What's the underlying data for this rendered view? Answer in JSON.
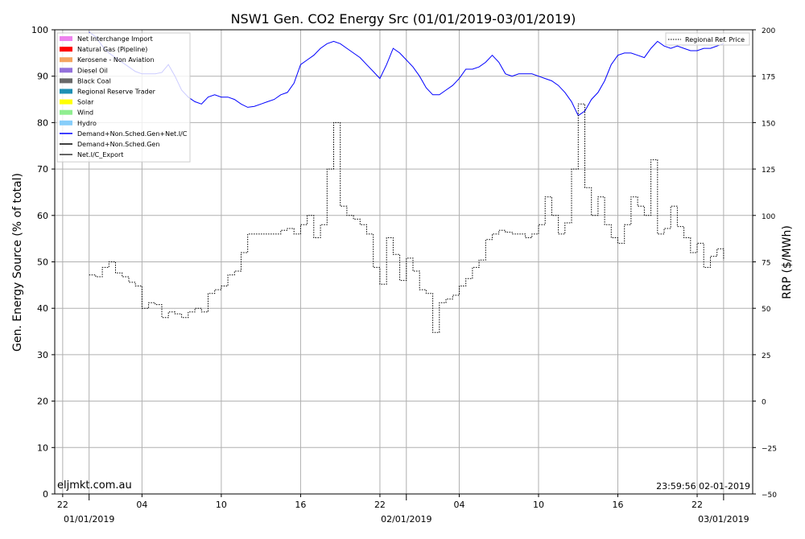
{
  "chart_data": {
    "type": "line",
    "title": "NSW1 Gen. CO2 Energy Src (01/01/2019-03/01/2019)",
    "ylabel": "Gen. Energy Source (% of total)",
    "y2label": "RRP ($/MWh)",
    "ylim": [
      0,
      100
    ],
    "y2lim": [
      -50,
      200
    ],
    "yticks": [
      "0",
      "10",
      "20",
      "30",
      "40",
      "50",
      "60",
      "70",
      "80",
      "90",
      "100"
    ],
    "y2ticks": [
      "−50",
      "−25",
      "0",
      "25",
      "50",
      "75",
      "100",
      "125",
      "150",
      "175",
      "200"
    ],
    "xlim": [
      -2.6,
      50.2
    ],
    "xticks": [
      {
        "x": -2,
        "label": "22"
      },
      {
        "x": 4,
        "label": "04"
      },
      {
        "x": 10,
        "label": "10"
      },
      {
        "x": 16,
        "label": "16"
      },
      {
        "x": 22,
        "label": "22"
      },
      {
        "x": 28,
        "label": "04"
      },
      {
        "x": 34,
        "label": "10"
      },
      {
        "x": 40,
        "label": "16"
      },
      {
        "x": 46,
        "label": "22"
      }
    ],
    "date_ticks": [
      {
        "x": 0,
        "label": "01/01/2019"
      },
      {
        "x": 24,
        "label": "02/01/2019"
      },
      {
        "x": 48,
        "label": "03/01/2019"
      }
    ],
    "x_unit": "hours since 01/01/2019 00:00",
    "grid": true,
    "legend_left": {
      "placement": "top-left",
      "entries": [
        {
          "label": "Net Interchange Import",
          "color": "#ee82ee",
          "kind": "patch"
        },
        {
          "label": "Natural Gas (Pipeline)",
          "color": "#ff0000",
          "kind": "patch"
        },
        {
          "label": "Kerosene - Non Aviation",
          "color": "#f4a460",
          "kind": "patch"
        },
        {
          "label": "Diesel Oil",
          "color": "#9370db",
          "kind": "patch"
        },
        {
          "label": "Black Coal",
          "color": "#696969",
          "kind": "patch"
        },
        {
          "label": "Regional Reserve Trader",
          "color": "#1e90b4",
          "kind": "patch"
        },
        {
          "label": "Solar",
          "color": "#ffff00",
          "kind": "patch"
        },
        {
          "label": "Wind",
          "color": "#90ee90",
          "kind": "patch"
        },
        {
          "label": "Hydro",
          "color": "#87cefa",
          "kind": "patch"
        },
        {
          "label": "Demand+Non.Sched.Gen+Net.I/C",
          "color": "#0000ff",
          "kind": "line"
        },
        {
          "label": "Demand+Non.Sched.Gen",
          "color": "#000000",
          "kind": "line"
        },
        {
          "label": "Net.I/C_Export",
          "color": "#333333",
          "kind": "line"
        }
      ]
    },
    "legend_right": {
      "placement": "top-right",
      "entries": [
        {
          "label": "Regional Ref. Price",
          "color": "#000000",
          "kind": "dotted"
        }
      ]
    },
    "series": [
      {
        "name": "Demand+Non.Sched.Gen+Net.I/C",
        "axis": "left",
        "color": "#0000ff",
        "x": [
          0,
          0.5,
          1,
          1.5,
          2,
          2.5,
          3,
          3.5,
          4,
          4.5,
          5,
          5.5,
          6,
          6.5,
          7,
          7.5,
          8,
          8.5,
          9,
          9.5,
          10,
          10.5,
          11,
          11.5,
          12,
          12.5,
          13,
          13.5,
          14,
          14.5,
          15,
          15.5,
          16,
          16.5,
          17,
          17.5,
          18,
          18.5,
          19,
          19.5,
          20,
          20.5,
          21,
          21.5,
          22,
          22.5,
          23,
          23.5,
          24,
          24.5,
          25,
          25.5,
          26,
          26.5,
          27,
          27.5,
          28,
          28.5,
          29,
          29.5,
          30,
          30.5,
          31,
          31.5,
          32,
          32.5,
          33,
          33.5,
          34,
          34.5,
          35,
          35.5,
          36,
          36.5,
          37,
          37.5,
          38,
          38.5,
          39,
          39.5,
          40,
          40.5,
          41,
          41.5,
          42,
          42.5,
          43,
          43.5,
          44,
          44.5,
          45,
          45.5,
          46,
          46.5,
          47,
          47.5,
          48
        ],
        "values": [
          99.5,
          98.5,
          96.5,
          95.0,
          94.0,
          93.0,
          92.0,
          91.0,
          90.5,
          90.5,
          90.5,
          90.8,
          92.5,
          90.0,
          87.0,
          85.5,
          84.5,
          84.0,
          85.5,
          86.0,
          85.5,
          85.5,
          85.0,
          84.0,
          83.3,
          83.5,
          84.0,
          84.5,
          85.0,
          86.0,
          86.5,
          88.5,
          92.5,
          93.5,
          94.5,
          96.0,
          97.0,
          97.5,
          97.0,
          96.0,
          95.0,
          94.0,
          92.5,
          91.0,
          89.5,
          92.5,
          96.0,
          95.0,
          93.5,
          92.0,
          90.0,
          87.5,
          86.0,
          86.0,
          87.0,
          88.0,
          89.5,
          91.5,
          91.5,
          92.0,
          93.0,
          94.5,
          93.0,
          90.5,
          90.0,
          90.5,
          90.5,
          90.5,
          90.0,
          89.5,
          89.0,
          88.0,
          86.5,
          84.5,
          81.5,
          82.5,
          85.0,
          86.5,
          89.0,
          92.5,
          94.5,
          95.0,
          95.0,
          94.5,
          94.0,
          96.0,
          97.5,
          96.5,
          96.0,
          96.5,
          96.0,
          95.5,
          95.5,
          96.0,
          96.0,
          96.5,
          97.0
        ]
      },
      {
        "name": "Regional Ref. Price",
        "axis": "right",
        "color": "#000000",
        "style": "dotted",
        "x": [
          0,
          0.5,
          1,
          1.5,
          2,
          2.5,
          3,
          3.5,
          4,
          4.5,
          5,
          5.5,
          6,
          6.5,
          7,
          7.5,
          8,
          8.5,
          9,
          9.5,
          10,
          10.5,
          11,
          11.5,
          12,
          12.5,
          13,
          13.5,
          14,
          14.5,
          15,
          15.5,
          16,
          16.5,
          17,
          17.5,
          18,
          18.5,
          19,
          19.5,
          20,
          20.5,
          21,
          21.5,
          22,
          22.5,
          23,
          23.5,
          24,
          24.5,
          25,
          25.5,
          26,
          26.5,
          27,
          27.5,
          28,
          28.5,
          29,
          29.5,
          30,
          30.5,
          31,
          31.5,
          32,
          32.5,
          33,
          33.5,
          34,
          34.5,
          35,
          35.5,
          36,
          36.5,
          37,
          37.5,
          38,
          38.5,
          39,
          39.5,
          40,
          40.5,
          41,
          41.5,
          42,
          42.5,
          43,
          43.5,
          44,
          44.5,
          45,
          45.5,
          46,
          46.5,
          47,
          47.5,
          48
        ],
        "values": [
          68,
          67,
          72,
          75,
          69,
          67,
          64,
          62,
          50,
          53,
          52,
          45,
          48,
          47,
          45,
          48,
          50,
          48,
          58,
          60,
          62,
          68,
          70,
          80,
          90,
          90,
          90,
          90,
          90,
          92,
          93,
          90,
          95,
          100,
          88,
          95,
          125,
          150,
          105,
          100,
          98,
          95,
          90,
          72,
          63,
          88,
          79,
          65,
          77,
          70,
          60,
          58,
          37,
          53,
          55,
          57,
          62,
          66,
          72,
          76,
          87,
          90,
          92,
          91,
          90,
          90,
          88,
          90,
          95,
          110,
          100,
          90,
          96,
          125,
          160,
          115,
          100,
          110,
          95,
          88,
          85,
          95,
          110,
          105,
          100,
          130,
          90,
          93,
          105,
          94,
          88,
          80,
          85,
          72,
          78,
          82,
          76
        ]
      }
    ]
  },
  "watermark": "eljmkt.com.au",
  "timestamp": "23:59:56 02-01-2019"
}
